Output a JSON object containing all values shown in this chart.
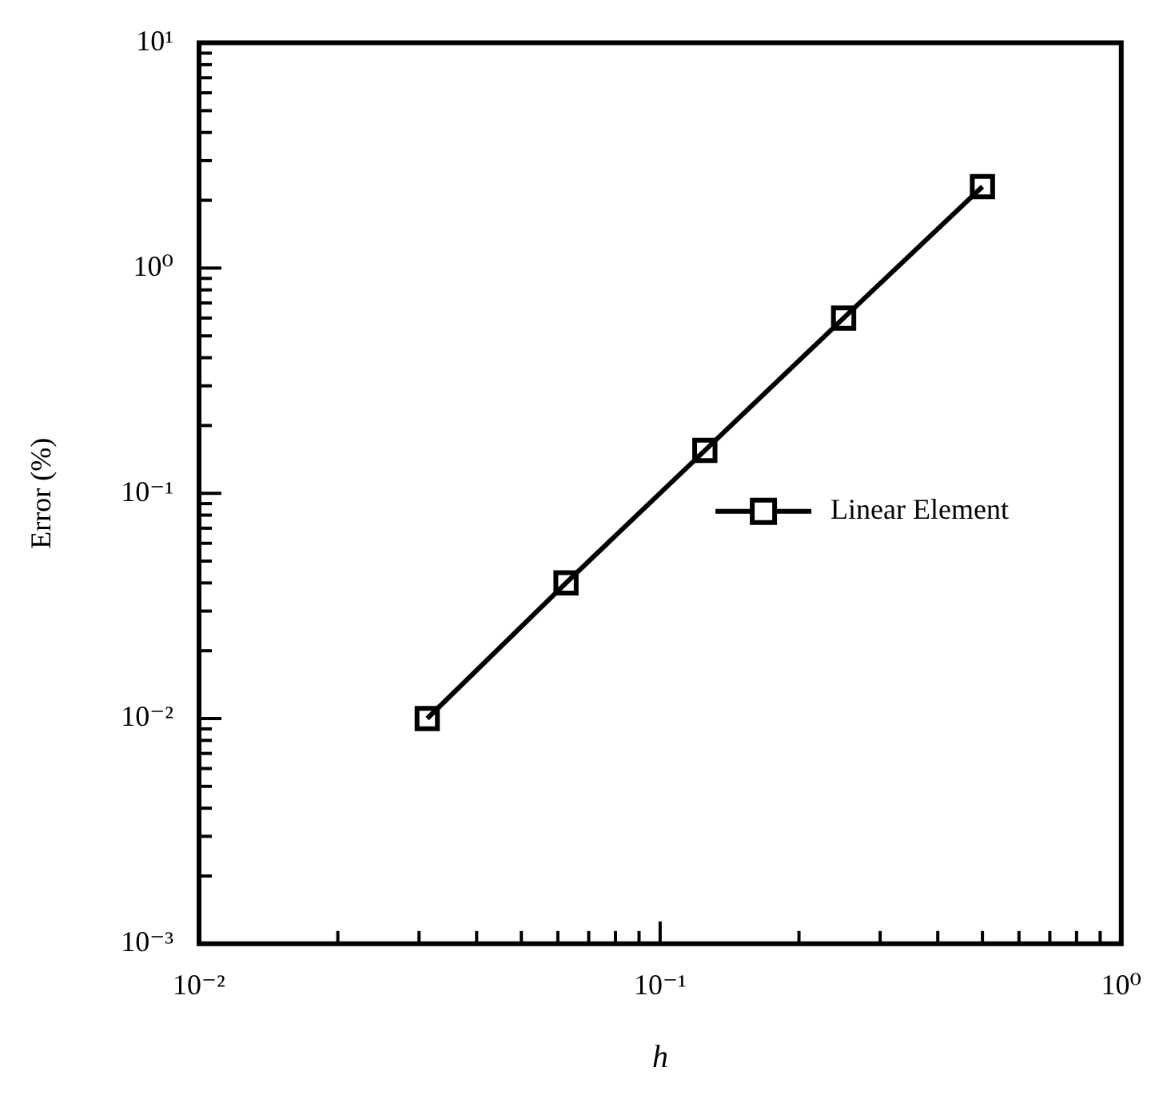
{
  "chart_data": {
    "type": "line",
    "xlabel": "h",
    "ylabel": "Error (%)",
    "x": [
      0.03125,
      0.0625,
      0.125,
      0.25,
      0.5
    ],
    "series": [
      {
        "name": "Linear Element",
        "color": "#000000",
        "values": [
          0.01,
          0.04,
          0.155,
          0.6,
          2.3
        ]
      }
    ],
    "log": "xy",
    "marker": "square",
    "line_style": "solid",
    "legend": "right",
    "xlim": [
      0.01,
      1
    ],
    "ylim": [
      0.001,
      10
    ],
    "xticks": [
      {
        "value": 0.01,
        "label": "10⁻²"
      },
      {
        "value": 0.02,
        "label": null
      },
      {
        "value": 0.03,
        "label": null
      },
      {
        "value": 0.04,
        "label": null
      },
      {
        "value": 0.05,
        "label": null
      },
      {
        "value": 0.06,
        "label": null
      },
      {
        "value": 0.07,
        "label": null
      },
      {
        "value": 0.08,
        "label": null
      },
      {
        "value": 0.09,
        "label": null
      },
      {
        "value": 0.1,
        "label": "10⁻¹"
      },
      {
        "value": 0.2,
        "label": null
      },
      {
        "value": 0.3,
        "label": null
      },
      {
        "value": 0.4,
        "label": null
      },
      {
        "value": 0.5,
        "label": null
      },
      {
        "value": 0.6,
        "label": null
      },
      {
        "value": 0.7,
        "label": null
      },
      {
        "value": 0.8,
        "label": null
      },
      {
        "value": 0.9,
        "label": null
      },
      {
        "value": 1,
        "label": "10⁰"
      }
    ],
    "yticks": [
      {
        "value": 0.001,
        "label": "10⁻³"
      },
      {
        "value": 0.002,
        "label": null
      },
      {
        "value": 0.003,
        "label": null
      },
      {
        "value": 0.004,
        "label": null
      },
      {
        "value": 0.005,
        "label": null
      },
      {
        "value": 0.006,
        "label": null
      },
      {
        "value": 0.007,
        "label": null
      },
      {
        "value": 0.008,
        "label": null
      },
      {
        "value": 0.009,
        "label": null
      },
      {
        "value": 0.01,
        "label": "10⁻²"
      },
      {
        "value": 0.02,
        "label": null
      },
      {
        "value": 0.03,
        "label": null
      },
      {
        "value": 0.04,
        "label": null
      },
      {
        "value": 0.05,
        "label": null
      },
      {
        "value": 0.06,
        "label": null
      },
      {
        "value": 0.07,
        "label": null
      },
      {
        "value": 0.08,
        "label": null
      },
      {
        "value": 0.09,
        "label": null
      },
      {
        "value": 0.1,
        "label": "10⁻¹"
      },
      {
        "value": 0.2,
        "label": null
      },
      {
        "value": 0.3,
        "label": null
      },
      {
        "value": 0.4,
        "label": null
      },
      {
        "value": 0.5,
        "label": null
      },
      {
        "value": 0.6,
        "label": null
      },
      {
        "value": 0.7,
        "label": null
      },
      {
        "value": 0.8,
        "label": null
      },
      {
        "value": 0.9,
        "label": null
      },
      {
        "value": 1,
        "label": "10⁰"
      },
      {
        "value": 2,
        "label": null
      },
      {
        "value": 3,
        "label": null
      },
      {
        "value": 4,
        "label": null
      },
      {
        "value": 5,
        "label": null
      },
      {
        "value": 6,
        "label": null
      },
      {
        "value": 7,
        "label": null
      },
      {
        "value": 8,
        "label": null
      },
      {
        "value": 9,
        "label": null
      },
      {
        "value": 10,
        "label": "10¹"
      }
    ]
  }
}
